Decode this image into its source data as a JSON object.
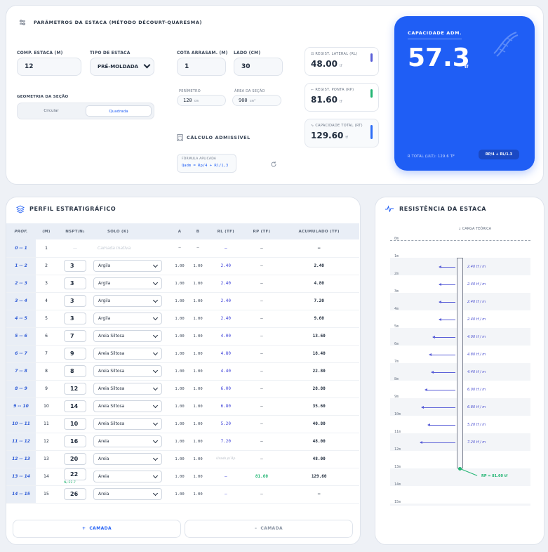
{
  "params": {
    "title": "PARÂMETROS DA ESTACA (MÉTODO DÉCOURT-QUARESMA)",
    "comp_label": "COMP. ESTACA (M)",
    "comp_value": "12",
    "tipo_label": "TIPO DE ESTACA",
    "tipo_value": "PRÉ-MOLDADA",
    "cota_label": "COTA ARRASAM. (M)",
    "cota_value": "1",
    "lado_label": "LADO (CM)",
    "lado_value": "30",
    "geom_label": "GEOMETRIA DA SEÇÃO",
    "geom_options": [
      "Circular",
      "Quadrada"
    ],
    "perim_label": "PERÍMETRO",
    "perim_value": "120",
    "perim_unit": "cm",
    "area_label": "ÁREA DA SEÇÃO",
    "area_value": "900",
    "area_unit": "cm²",
    "calc_title": "CÁLCULO ADMISSÍVEL",
    "formula_label": "FÓRMULA APLICADA",
    "formula": "Qadm = Rp/4 + Rl/1,3"
  },
  "results": {
    "lateral_label": "REGIST. LATERAL (RL)",
    "lateral_value": "48.00",
    "ponta_label": "REGIST. PONTA (RP)",
    "ponta_value": "81.60",
    "total_label": "CAPACIDADE TOTAL (RT)",
    "total_value": "129.60",
    "unit": "tf"
  },
  "capacity": {
    "label": "CAPACIDADE ADM.",
    "value": "57.3",
    "unit": "tf",
    "total": "R TOTAL (ULT): 129.6 TF",
    "formula_badge": "RP/4 + RL/1.3"
  },
  "colors": {
    "accent": "#1f5ef5",
    "lateral": "#5a5fd8",
    "ponta": "#22b573",
    "total": "#2d6df6"
  },
  "perfil": {
    "title": "PERFIL ESTRATIGRÁFICO",
    "headers": [
      "PROF.",
      "(M)",
      "NSPT/N₂",
      "SOLO (K)",
      "A",
      "B",
      "RL (TF)",
      "RP (TF)",
      "ACUMULADO (TF)"
    ],
    "rows": [
      {
        "prof": "0 -- 1",
        "m": "1",
        "nspt": "",
        "solo": "Camada Inativa",
        "a": "—",
        "b": "—",
        "rl": "—",
        "rp": "—",
        "acc": "—",
        "inactive": true
      },
      {
        "prof": "1 -- 2",
        "m": "2",
        "nspt": "3",
        "solo": "Argila",
        "a": "1.00",
        "b": "1.00",
        "rl": "2.40",
        "rp": "—",
        "acc": "2.40"
      },
      {
        "prof": "2 -- 3",
        "m": "3",
        "nspt": "3",
        "solo": "Argila",
        "a": "1.00",
        "b": "1.00",
        "rl": "2.40",
        "rp": "—",
        "acc": "4.80"
      },
      {
        "prof": "3 -- 4",
        "m": "4",
        "nspt": "3",
        "solo": "Argila",
        "a": "1.00",
        "b": "1.00",
        "rl": "2.40",
        "rp": "—",
        "acc": "7.20"
      },
      {
        "prof": "4 -- 5",
        "m": "5",
        "nspt": "3",
        "solo": "Argila",
        "a": "1.00",
        "b": "1.00",
        "rl": "2.40",
        "rp": "—",
        "acc": "9.60"
      },
      {
        "prof": "5 -- 6",
        "m": "6",
        "nspt": "7",
        "solo": "Areia Siltosa",
        "a": "1.00",
        "b": "1.00",
        "rl": "4.00",
        "rp": "—",
        "acc": "13.60"
      },
      {
        "prof": "6 -- 7",
        "m": "7",
        "nspt": "9",
        "solo": "Areia Siltosa",
        "a": "1.00",
        "b": "1.00",
        "rl": "4.80",
        "rp": "—",
        "acc": "18.40"
      },
      {
        "prof": "7 -- 8",
        "m": "8",
        "nspt": "8",
        "solo": "Areia Siltosa",
        "a": "1.00",
        "b": "1.00",
        "rl": "4.40",
        "rp": "—",
        "acc": "22.80"
      },
      {
        "prof": "8 -- 9",
        "m": "9",
        "nspt": "12",
        "solo": "Areia Siltosa",
        "a": "1.00",
        "b": "1.00",
        "rl": "6.00",
        "rp": "—",
        "acc": "28.80"
      },
      {
        "prof": "9 -- 10",
        "m": "10",
        "nspt": "14",
        "solo": "Areia Siltosa",
        "a": "1.00",
        "b": "1.00",
        "rl": "6.80",
        "rp": "—",
        "acc": "35.60"
      },
      {
        "prof": "10 -- 11",
        "m": "11",
        "nspt": "10",
        "solo": "Areia Siltosa",
        "a": "1.00",
        "b": "1.00",
        "rl": "5.20",
        "rp": "—",
        "acc": "40.80"
      },
      {
        "prof": "11 -- 12",
        "m": "12",
        "nspt": "16",
        "solo": "Areia",
        "a": "1.00",
        "b": "1.00",
        "rl": "7.20",
        "rp": "—",
        "acc": "48.00"
      },
      {
        "prof": "12 -- 13",
        "m": "13",
        "nspt": "20",
        "solo": "Areia",
        "a": "1.00",
        "b": "1.00",
        "rl": "Usado p/ Rp",
        "rp": "—",
        "acc": "48.00",
        "used": true
      },
      {
        "prof": "13 -- 14",
        "m": "14",
        "nspt": "22",
        "np": "Nₚ:22.7",
        "solo": "Areia",
        "a": "1.00",
        "b": "1.00",
        "rl": "—",
        "rp": "81.60",
        "acc": "129.60",
        "tip": true
      },
      {
        "prof": "14 -- 15",
        "m": "15",
        "nspt": "26",
        "solo": "Areia",
        "a": "1.00",
        "b": "1.00",
        "rl": "—",
        "rp": "—",
        "acc": "—"
      }
    ],
    "add_label": "CAMADA",
    "remove_label": "CAMADA"
  },
  "resist": {
    "title": "RESISTÊNCIA DA ESTACA",
    "carga": "CARGA TEÓRICA",
    "depths": [
      "0m",
      "1m",
      "2m",
      "3m",
      "4m",
      "5m",
      "6m",
      "7m",
      "8m",
      "9m",
      "10m",
      "11m",
      "12m",
      "13m",
      "14m",
      "15m"
    ],
    "rl_values": [
      2.4,
      2.4,
      2.4,
      2.4,
      4.0,
      4.8,
      4.4,
      6.0,
      6.8,
      5.2,
      7.2
    ],
    "rl_labels": [
      "2.40 tf / m",
      "2.40 tf / m",
      "2.40 tf / m",
      "2.40 tf / m",
      "4.00 tf / m",
      "4.80 tf / m",
      "4.40 tf / m",
      "6.00 tf / m",
      "6.80 tf / m",
      "5.20 tf / m",
      "7.20 tf / m"
    ],
    "rp_label": "RP = 81.60 tf"
  }
}
